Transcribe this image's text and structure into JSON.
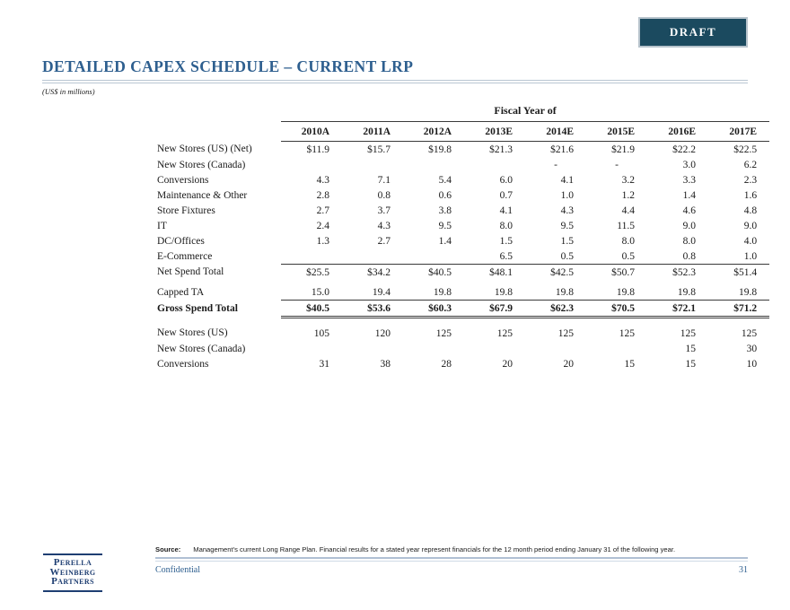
{
  "badge": {
    "label": "DRAFT"
  },
  "header": {
    "title": "DETAILED CAPEX SCHEDULE – CURRENT LRP",
    "subtitle": "(US$ in millions)"
  },
  "table": {
    "group_header": "Fiscal Year of",
    "columns": [
      "2010A",
      "2011A",
      "2012A",
      "2013E",
      "2014E",
      "2015E",
      "2016E",
      "2017E"
    ],
    "rows": [
      {
        "label": "New Stores (US) (Net)",
        "values": [
          "$11.9",
          "$15.7",
          "$19.8",
          "$21.3",
          "$21.6",
          "$21.9",
          "$22.2",
          "$22.5"
        ]
      },
      {
        "label": "New Stores (Canada)",
        "values": [
          "",
          "",
          "",
          "",
          "-",
          "-",
          "3.0",
          "6.2"
        ]
      },
      {
        "label": "Conversions",
        "values": [
          "4.3",
          "7.1",
          "5.4",
          "6.0",
          "4.1",
          "3.2",
          "3.3",
          "2.3"
        ]
      },
      {
        "label": "Maintenance & Other",
        "values": [
          "2.8",
          "0.8",
          "0.6",
          "0.7",
          "1.0",
          "1.2",
          "1.4",
          "1.6"
        ]
      },
      {
        "label": "Store Fixtures",
        "values": [
          "2.7",
          "3.7",
          "3.8",
          "4.1",
          "4.3",
          "4.4",
          "4.6",
          "4.8"
        ]
      },
      {
        "label": "IT",
        "values": [
          "2.4",
          "4.3",
          "9.5",
          "8.0",
          "9.5",
          "11.5",
          "9.0",
          "9.0"
        ]
      },
      {
        "label": "DC/Offices",
        "values": [
          "1.3",
          "2.7",
          "1.4",
          "1.5",
          "1.5",
          "8.0",
          "8.0",
          "4.0"
        ]
      },
      {
        "label": "E-Commerce",
        "values": [
          "",
          "",
          "",
          "6.5",
          "0.5",
          "0.5",
          "0.8",
          "1.0"
        ]
      },
      {
        "label": "Net Spend Total",
        "values": [
          "$25.5",
          "$34.2",
          "$40.5",
          "$48.1",
          "$42.5",
          "$50.7",
          "$52.3",
          "$51.4"
        ]
      },
      {
        "label": "Capped TA",
        "values": [
          "15.0",
          "19.4",
          "19.8",
          "19.8",
          "19.8",
          "19.8",
          "19.8",
          "19.8"
        ]
      },
      {
        "label": "Gross Spend Total",
        "values": [
          "$40.5",
          "$53.6",
          "$60.3",
          "$67.9",
          "$62.3",
          "$70.5",
          "$72.1",
          "$71.2"
        ]
      },
      {
        "label": "New Stores (US)",
        "values": [
          "105",
          "120",
          "125",
          "125",
          "125",
          "125",
          "125",
          "125"
        ]
      },
      {
        "label": "New Stores (Canada)",
        "values": [
          "",
          "",
          "",
          "",
          "",
          "",
          "15",
          "30"
        ]
      },
      {
        "label": "Conversions",
        "values": [
          "31",
          "38",
          "28",
          "20",
          "20",
          "15",
          "15",
          "10"
        ]
      }
    ]
  },
  "footer": {
    "source_label": "Source:",
    "source_text": "Management’s current Long Range Plan. Financial results for a stated year represent financials for the 12 month period ending January 31 of the following year.",
    "confidential": "Confidential",
    "page_number": "31"
  },
  "logo": {
    "line1": "Perella",
    "line2": "Weinberg",
    "line3": "Partners"
  },
  "colors": {
    "accent_blue": "#2e5f8f",
    "badge_background": "#1b4a5f",
    "logo_navy": "#1e3e72",
    "rule_light_blue": "#b0c0d4",
    "table_line": "#3a3a3a"
  }
}
